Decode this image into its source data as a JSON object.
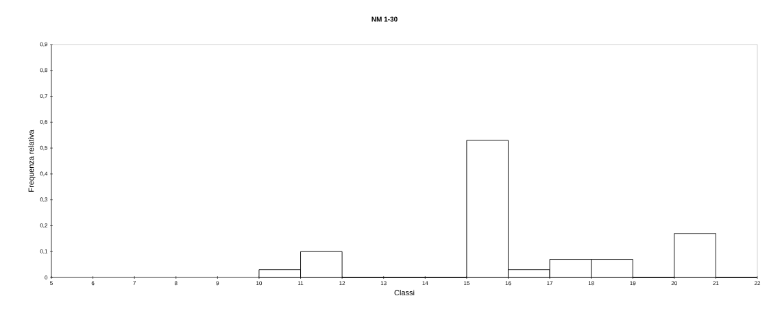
{
  "chart_data": {
    "type": "histogram",
    "title": "NM 1-30",
    "xlabel": "Classi",
    "ylabel": "Frequenza relativa",
    "bins": [
      10,
      11,
      12,
      13,
      14,
      15,
      16,
      17,
      18,
      19,
      20,
      21,
      22
    ],
    "values": [
      0.03,
      0.1,
      0,
      0,
      0,
      0.53,
      0.03,
      0.07,
      0.07,
      0,
      0.17,
      0
    ],
    "color": "#ffffff",
    "xlim": [
      5,
      22
    ],
    "xticks": [
      5,
      6,
      7,
      8,
      9,
      10,
      11,
      12,
      13,
      14,
      15,
      16,
      17,
      18,
      19,
      20,
      21,
      22
    ],
    "ylim": [
      0,
      0.9
    ],
    "yticks": [
      0,
      {
        "value": 0.1,
        "label": "0,1"
      },
      {
        "value": 0.2,
        "label": "0,2"
      },
      {
        "value": 0.3,
        "label": "0,3"
      },
      {
        "value": 0.4,
        "label": "0,4"
      },
      {
        "value": 0.5,
        "label": "0,5"
      },
      {
        "value": 0.6,
        "label": "0,6"
      },
      {
        "value": 0.7,
        "label": "0,7"
      },
      {
        "value": 0.8,
        "label": "0,8"
      },
      {
        "value": 0.9,
        "label": "0,9"
      }
    ],
    "grid": false
  }
}
